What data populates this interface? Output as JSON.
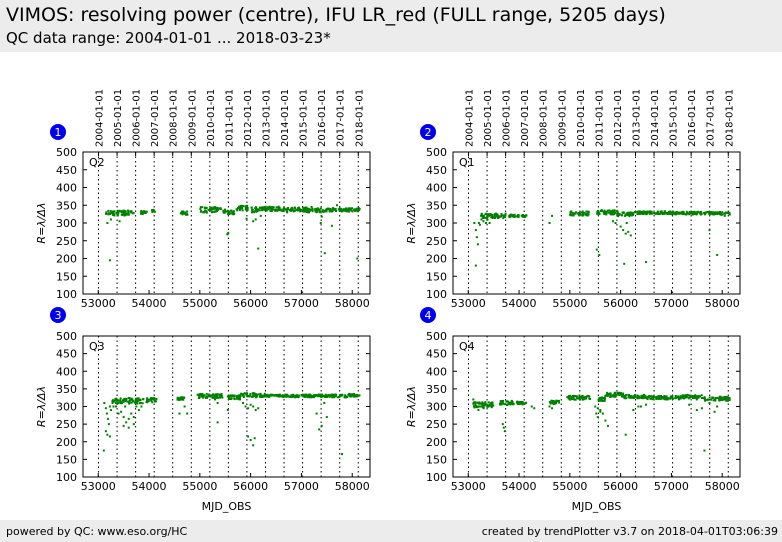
{
  "header": {
    "title": "VIMOS: resolving power (centre), IFU LR_red (FULL range, 5205 days)",
    "subtitle": "QC data range: 2004-01-01 ... 2018-03-23*"
  },
  "footer": {
    "left": "powered by QC: www.eso.org/HC",
    "right": "created by trendPlotter v3.7 on 2018-04-01T03:06:39"
  },
  "colors": {
    "points": "#008000",
    "badge": "#0000ee",
    "header_bg": "#ececec"
  },
  "chart_data": [
    {
      "type": "scatter",
      "badge": "1",
      "panel_label": "Q2",
      "xlabel": "",
      "ylabel": "R=λ/Δλ",
      "xlim": [
        52700,
        58350
      ],
      "ylim": [
        100,
        500
      ],
      "xticks": [
        53000,
        54000,
        55000,
        56000,
        57000,
        58000
      ],
      "yticks": [
        100,
        150,
        200,
        250,
        300,
        350,
        400,
        450,
        500
      ],
      "top_date_labels": [
        "2004-01-01",
        "2005-01-01",
        "2006-01-01",
        "2007-01-01",
        "2008-01-01",
        "2009-01-01",
        "2010-01-01",
        "2011-01-01",
        "2012-01-01",
        "2013-01-01",
        "2014-01-01",
        "2015-01-01",
        "2016-01-01",
        "2017-01-01",
        "2018-01-01"
      ],
      "top_date_mjd": [
        53005,
        53371,
        53736,
        54101,
        54466,
        54832,
        55197,
        55562,
        55927,
        56293,
        56658,
        57023,
        57388,
        57754,
        58119
      ],
      "segments": [
        [
          53150,
          53700,
          328,
          7
        ],
        [
          53830,
          53960,
          330,
          5
        ],
        [
          54050,
          54120,
          333,
          4
        ],
        [
          54620,
          54760,
          328,
          5
        ],
        [
          55000,
          55420,
          337,
          8
        ],
        [
          55460,
          55520,
          333,
          5
        ],
        [
          55550,
          55700,
          330,
          6
        ],
        [
          55720,
          55950,
          342,
          7
        ],
        [
          56000,
          56150,
          338,
          8
        ],
        [
          56150,
          56600,
          340,
          6
        ],
        [
          56600,
          57100,
          338,
          6
        ],
        [
          57100,
          57480,
          336,
          6
        ],
        [
          57480,
          58150,
          337,
          5
        ]
      ],
      "points": [
        [
          53180,
          300
        ],
        [
          53200,
          325
        ],
        [
          53250,
          310
        ],
        [
          53230,
          195
        ],
        [
          53420,
          305
        ],
        [
          55920,
          312
        ],
        [
          56050,
          305
        ],
        [
          56100,
          310
        ],
        [
          56200,
          320
        ],
        [
          55540,
          268
        ],
        [
          55560,
          272
        ],
        [
          56720,
          330
        ],
        [
          57150,
          330
        ],
        [
          57400,
          318
        ],
        [
          57380,
          300
        ],
        [
          57600,
          292
        ],
        [
          57460,
          215
        ],
        [
          58100,
          200
        ],
        [
          57200,
          345
        ],
        [
          57700,
          350
        ],
        [
          56150,
          228
        ]
      ]
    },
    {
      "type": "scatter",
      "badge": "2",
      "panel_label": "Q1",
      "xlabel": "",
      "ylabel": "R=λ/Δλ",
      "xlim": [
        52700,
        58350
      ],
      "ylim": [
        100,
        500
      ],
      "xticks": [
        53000,
        54000,
        55000,
        56000,
        57000,
        58000
      ],
      "yticks": [
        100,
        150,
        200,
        250,
        300,
        350,
        400,
        450,
        500
      ],
      "top_date_labels": [
        "2004-01-01",
        "2005-01-01",
        "2006-01-01",
        "2007-01-01",
        "2008-01-01",
        "2009-01-01",
        "2010-01-01",
        "2011-01-01",
        "2012-01-01",
        "2013-01-01",
        "2014-01-01",
        "2015-01-01",
        "2016-01-01",
        "2017-01-01",
        "2018-01-01"
      ],
      "top_date_mjd": [
        53005,
        53371,
        53736,
        54101,
        54466,
        54832,
        55197,
        55562,
        55927,
        56293,
        56658,
        57023,
        57388,
        57754,
        58119
      ],
      "segments": [
        [
          53250,
          53750,
          320,
          7
        ],
        [
          53800,
          54000,
          320,
          4
        ],
        [
          54050,
          54150,
          320,
          3
        ],
        [
          55000,
          55400,
          327,
          6
        ],
        [
          55500,
          55950,
          330,
          6
        ],
        [
          55950,
          56250,
          325,
          6
        ],
        [
          56250,
          57000,
          329,
          4
        ],
        [
          57000,
          57800,
          328,
          4
        ],
        [
          57800,
          58150,
          327,
          4
        ]
      ],
      "points": [
        [
          53120,
          300
        ],
        [
          53150,
          280
        ],
        [
          53170,
          260
        ],
        [
          53190,
          240
        ],
        [
          53210,
          300
        ],
        [
          53230,
          295
        ],
        [
          53260,
          310
        ],
        [
          53280,
          320
        ],
        [
          53300,
          305
        ],
        [
          53150,
          180
        ],
        [
          53350,
          300
        ],
        [
          53380,
          310
        ],
        [
          53420,
          300
        ],
        [
          54600,
          300
        ],
        [
          54650,
          320
        ],
        [
          55530,
          225
        ],
        [
          55580,
          210
        ],
        [
          55850,
          305
        ],
        [
          55900,
          300
        ],
        [
          56000,
          290
        ],
        [
          56050,
          280
        ],
        [
          56100,
          270
        ],
        [
          56150,
          275
        ],
        [
          56200,
          265
        ],
        [
          56120,
          300
        ],
        [
          56500,
          190
        ],
        [
          56070,
          185
        ],
        [
          57750,
          280
        ],
        [
          57900,
          210
        ],
        [
          57750,
          325
        ],
        [
          58050,
          320
        ]
      ]
    },
    {
      "type": "scatter",
      "badge": "3",
      "panel_label": "Q3",
      "xlabel": "MJD_OBS",
      "ylabel": "R=λ/Δλ",
      "xlim": [
        52700,
        58350
      ],
      "ylim": [
        100,
        500
      ],
      "xticks": [
        53000,
        54000,
        55000,
        56000,
        57000,
        58000
      ],
      "yticks": [
        100,
        150,
        200,
        250,
        300,
        350,
        400,
        450,
        500
      ],
      "top_date_labels": [],
      "top_date_mjd": [
        53005,
        53371,
        53736,
        54101,
        54466,
        54832,
        55197,
        55562,
        55927,
        56293,
        56658,
        57023,
        57388,
        57754,
        58119
      ],
      "segments": [
        [
          53280,
          53900,
          316,
          8
        ],
        [
          53950,
          54150,
          318,
          6
        ],
        [
          54550,
          54700,
          322,
          4
        ],
        [
          54950,
          55450,
          330,
          6
        ],
        [
          55550,
          55800,
          326,
          6
        ],
        [
          55800,
          56300,
          332,
          6
        ],
        [
          56300,
          57200,
          330,
          4
        ],
        [
          57200,
          57900,
          330,
          4
        ],
        [
          57900,
          58150,
          332,
          4
        ]
      ],
      "points": [
        [
          53120,
          310
        ],
        [
          53150,
          295
        ],
        [
          53170,
          280
        ],
        [
          53190,
          265
        ],
        [
          53210,
          250
        ],
        [
          53230,
          300
        ],
        [
          53150,
          230
        ],
        [
          53180,
          220
        ],
        [
          53230,
          215
        ],
        [
          53110,
          175
        ],
        [
          53250,
          290
        ],
        [
          53300,
          300
        ],
        [
          53350,
          300
        ],
        [
          53400,
          280
        ],
        [
          53450,
          285
        ],
        [
          53500,
          270
        ],
        [
          53550,
          255
        ],
        [
          53600,
          265
        ],
        [
          53650,
          280
        ],
        [
          53700,
          270
        ],
        [
          53750,
          300
        ],
        [
          53800,
          290
        ],
        [
          53850,
          300
        ],
        [
          53500,
          245
        ],
        [
          53600,
          240
        ],
        [
          53700,
          250
        ],
        [
          53530,
          300
        ],
        [
          54700,
          300
        ],
        [
          54750,
          280
        ],
        [
          54600,
          280
        ],
        [
          55300,
          320
        ],
        [
          55350,
          310
        ],
        [
          55350,
          255
        ],
        [
          55550,
          290
        ],
        [
          55850,
          310
        ],
        [
          55900,
          300
        ],
        [
          55950,
          295
        ],
        [
          56000,
          305
        ],
        [
          56050,
          300
        ],
        [
          56100,
          290
        ],
        [
          56150,
          295
        ],
        [
          55950,
          215
        ],
        [
          56000,
          205
        ],
        [
          56050,
          190
        ],
        [
          56080,
          210
        ],
        [
          57300,
          280
        ],
        [
          57350,
          235
        ],
        [
          57400,
          245
        ],
        [
          57450,
          310
        ],
        [
          57500,
          270
        ],
        [
          57800,
          165
        ]
      ]
    },
    {
      "type": "scatter",
      "badge": "4",
      "panel_label": "Q4",
      "xlabel": "MJD_OBS",
      "ylabel": "R=λ/Δλ",
      "xlim": [
        52700,
        58350
      ],
      "ylim": [
        100,
        500
      ],
      "xticks": [
        53000,
        54000,
        55000,
        56000,
        57000,
        58000
      ],
      "yticks": [
        100,
        150,
        200,
        250,
        300,
        350,
        400,
        450,
        500
      ],
      "top_date_labels": [],
      "top_date_mjd": [
        53005,
        53371,
        53736,
        54101,
        54466,
        54832,
        55197,
        55562,
        55927,
        56293,
        56658,
        57023,
        57388,
        57754,
        58119
      ],
      "segments": [
        [
          53100,
          53500,
          305,
          8
        ],
        [
          53600,
          53900,
          310,
          6
        ],
        [
          53950,
          54150,
          310,
          4
        ],
        [
          54600,
          54800,
          312,
          5
        ],
        [
          54950,
          55400,
          325,
          6
        ],
        [
          55550,
          55700,
          320,
          6
        ],
        [
          55700,
          56050,
          333,
          6
        ],
        [
          56050,
          56500,
          328,
          5
        ],
        [
          56500,
          57200,
          325,
          5
        ],
        [
          57200,
          57650,
          328,
          5
        ],
        [
          57650,
          58150,
          322,
          6
        ]
      ],
      "points": [
        [
          53100,
          320
        ],
        [
          53150,
          300
        ],
        [
          53200,
          290
        ],
        [
          53250,
          300
        ],
        [
          53300,
          295
        ],
        [
          53400,
          300
        ],
        [
          53700,
          240
        ],
        [
          53720,
          230
        ],
        [
          53680,
          250
        ],
        [
          54250,
          300
        ],
        [
          54300,
          295
        ],
        [
          54600,
          300
        ],
        [
          54650,
          295
        ],
        [
          55500,
          300
        ],
        [
          55550,
          295
        ],
        [
          55600,
          285
        ],
        [
          55520,
          280
        ],
        [
          55550,
          270
        ],
        [
          55600,
          290
        ],
        [
          55650,
          280
        ],
        [
          55700,
          260
        ],
        [
          55750,
          245
        ],
        [
          56250,
          290
        ],
        [
          56350,
          300
        ],
        [
          56100,
          220
        ],
        [
          56400,
          300
        ],
        [
          56500,
          305
        ],
        [
          57350,
          305
        ],
        [
          57500,
          320
        ],
        [
          57750,
          310
        ],
        [
          57500,
          290
        ],
        [
          57600,
          295
        ],
        [
          57850,
          285
        ],
        [
          57900,
          300
        ],
        [
          57650,
          175
        ],
        [
          58100,
          320
        ]
      ]
    }
  ]
}
